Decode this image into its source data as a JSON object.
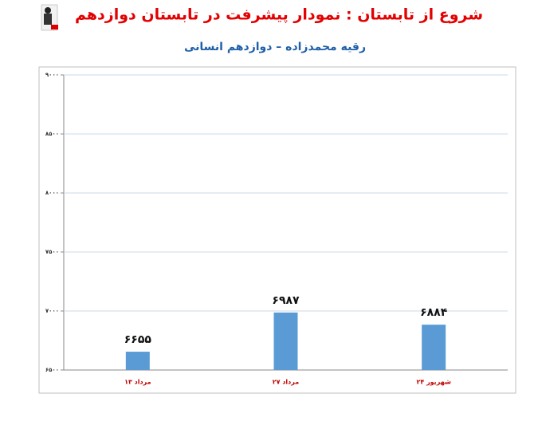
{
  "chart_data": {
    "type": "bar",
    "title": "شروع از تابستان : نمودار پیشرفت در تابستان دوازدهم",
    "subtitle": "رقیه محمدزاده – دوازدهم انسانی",
    "categories": [
      "۱۳ مرداد",
      "۲۷ مرداد",
      "۲۴ شهریور"
    ],
    "values": [
      6655,
      6987,
      6884
    ],
    "value_labels": [
      "۶۶۵۵",
      "۶۹۸۷",
      "۶۸۸۴"
    ],
    "color": "#5b9bd5",
    "ylim": [
      6500,
      9000
    ],
    "yticks": [
      {
        "value": 6500,
        "label": "۶۵۰۰"
      },
      {
        "value": 7000,
        "label": "۷۰۰۰"
      },
      {
        "value": 7500,
        "label": "۷۵۰۰"
      },
      {
        "value": 8000,
        "label": "۸۰۰۰"
      },
      {
        "value": 8500,
        "label": "۸۵۰۰"
      },
      {
        "value": 9000,
        "label": "۹۰۰۰"
      }
    ],
    "grid": true
  }
}
